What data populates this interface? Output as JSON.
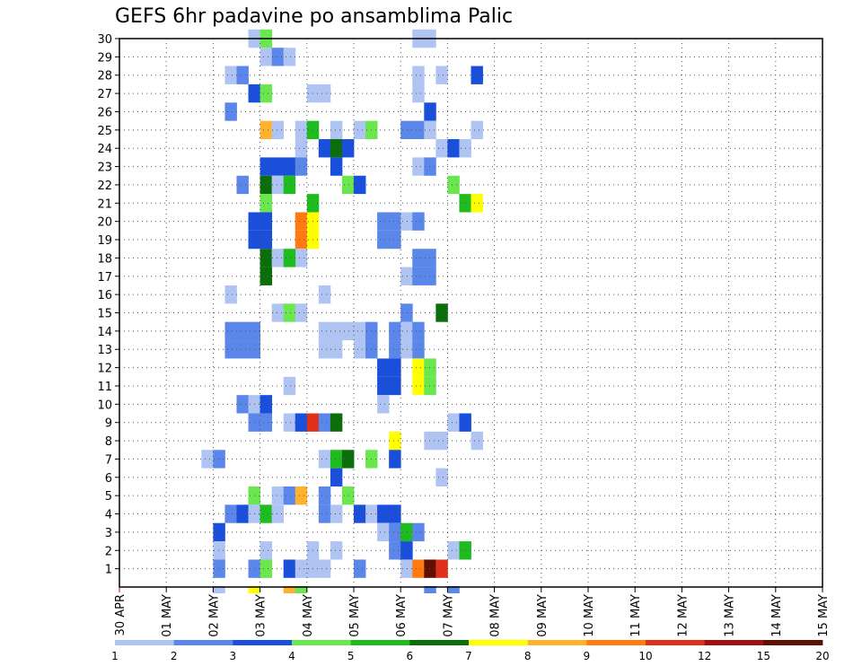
{
  "chart_data": {
    "type": "heatmap",
    "title": "GEFS 6hr padavine po ansamblima Palic",
    "x_tick_labels": [
      "30 APR",
      "01 MAY",
      "02 MAY",
      "03 MAY",
      "04 MAY",
      "05 MAY",
      "06 MAY",
      "07 MAY",
      "08 MAY",
      "09 MAY",
      "10 MAY",
      "11 MAY",
      "12 MAY",
      "13 MAY",
      "14 MAY",
      "15 MAY"
    ],
    "y_tick_labels": [
      "1",
      "2",
      "3",
      "4",
      "5",
      "6",
      "7",
      "8",
      "9",
      "10",
      "11",
      "12",
      "13",
      "14",
      "15",
      "16",
      "17",
      "18",
      "19",
      "20",
      "21",
      "22",
      "23",
      "24",
      "25",
      "26",
      "27",
      "28",
      "29",
      "30"
    ],
    "xlim_days": [
      0,
      15
    ],
    "ylim": [
      0,
      30
    ],
    "steps_per_day": 4,
    "grid": true,
    "legend_position": "bottom",
    "legend": {
      "boundaries": [
        "1",
        "2",
        "3",
        "4",
        "5",
        "6",
        "7",
        "8",
        "9",
        "10",
        "12",
        "15",
        "20",
        ""
      ],
      "colors": [
        "#b0c4f4",
        "#5c87ea",
        "#1a4fdc",
        "#6ae64e",
        "#1fbc1f",
        "#0a6e0a",
        "#ffff00",
        "#ffb22e",
        "#ff7a10",
        "#e0301a",
        "#a01010",
        "#601000"
      ]
    },
    "cells": [
      [
        30,
        11,
        0
      ],
      [
        30,
        12,
        3
      ],
      [
        30,
        25,
        0
      ],
      [
        30,
        26,
        0
      ],
      [
        29,
        12,
        0
      ],
      [
        29,
        13,
        1
      ],
      [
        29,
        14,
        0
      ],
      [
        28,
        9,
        0
      ],
      [
        28,
        10,
        1
      ],
      [
        28,
        25,
        0
      ],
      [
        28,
        27,
        0
      ],
      [
        28,
        30,
        2
      ],
      [
        27,
        11,
        2
      ],
      [
        27,
        12,
        3
      ],
      [
        27,
        16,
        0
      ],
      [
        27,
        17,
        0
      ],
      [
        27,
        25,
        0
      ],
      [
        26,
        9,
        1
      ],
      [
        26,
        26,
        2
      ],
      [
        25,
        12,
        7
      ],
      [
        25,
        13,
        0
      ],
      [
        25,
        15,
        0
      ],
      [
        25,
        16,
        4
      ],
      [
        25,
        18,
        0
      ],
      [
        25,
        20,
        0
      ],
      [
        25,
        21,
        3
      ],
      [
        25,
        24,
        1
      ],
      [
        25,
        25,
        1
      ],
      [
        25,
        26,
        0
      ],
      [
        25,
        30,
        0
      ],
      [
        24,
        15,
        0
      ],
      [
        24,
        17,
        2
      ],
      [
        24,
        18,
        5
      ],
      [
        24,
        19,
        2
      ],
      [
        24,
        27,
        0
      ],
      [
        24,
        28,
        2
      ],
      [
        24,
        29,
        0
      ],
      [
        23,
        12,
        2
      ],
      [
        23,
        13,
        2
      ],
      [
        23,
        14,
        2
      ],
      [
        23,
        15,
        1
      ],
      [
        23,
        18,
        2
      ],
      [
        23,
        25,
        0
      ],
      [
        23,
        26,
        1
      ],
      [
        22,
        10,
        1
      ],
      [
        22,
        12,
        5
      ],
      [
        22,
        13,
        0
      ],
      [
        22,
        14,
        4
      ],
      [
        22,
        19,
        3
      ],
      [
        22,
        20,
        2
      ],
      [
        22,
        28,
        3
      ],
      [
        21,
        12,
        3
      ],
      [
        21,
        16,
        4
      ],
      [
        21,
        29,
        4
      ],
      [
        21,
        30,
        6
      ],
      [
        20,
        11,
        2
      ],
      [
        20,
        12,
        2
      ],
      [
        20,
        15,
        8
      ],
      [
        20,
        16,
        6
      ],
      [
        20,
        22,
        1
      ],
      [
        20,
        23,
        1
      ],
      [
        20,
        24,
        0
      ],
      [
        20,
        25,
        1
      ],
      [
        19,
        11,
        2
      ],
      [
        19,
        12,
        2
      ],
      [
        19,
        15,
        8
      ],
      [
        19,
        16,
        6
      ],
      [
        19,
        22,
        1
      ],
      [
        19,
        23,
        1
      ],
      [
        18,
        15,
        0
      ],
      [
        18,
        12,
        5
      ],
      [
        18,
        13,
        0
      ],
      [
        18,
        14,
        4
      ],
      [
        18,
        25,
        1
      ],
      [
        18,
        26,
        1
      ],
      [
        17,
        12,
        5
      ],
      [
        17,
        24,
        0
      ],
      [
        17,
        25,
        1
      ],
      [
        17,
        26,
        1
      ],
      [
        16,
        9,
        0
      ],
      [
        16,
        17,
        0
      ],
      [
        15,
        13,
        0
      ],
      [
        15,
        14,
        3
      ],
      [
        15,
        15,
        0
      ],
      [
        15,
        24,
        1
      ],
      [
        15,
        27,
        5
      ],
      [
        14,
        9,
        1
      ],
      [
        14,
        10,
        1
      ],
      [
        14,
        11,
        1
      ],
      [
        14,
        17,
        0
      ],
      [
        14,
        18,
        0
      ],
      [
        14,
        19,
        0
      ],
      [
        14,
        20,
        0
      ],
      [
        14,
        21,
        1
      ],
      [
        14,
        23,
        1
      ],
      [
        14,
        24,
        0
      ],
      [
        14,
        25,
        1
      ],
      [
        13,
        9,
        1
      ],
      [
        13,
        10,
        1
      ],
      [
        13,
        11,
        1
      ],
      [
        13,
        17,
        0
      ],
      [
        13,
        18,
        0
      ],
      [
        13,
        20,
        0
      ],
      [
        13,
        21,
        1
      ],
      [
        13,
        23,
        1
      ],
      [
        13,
        24,
        0
      ],
      [
        13,
        25,
        1
      ],
      [
        12,
        22,
        2
      ],
      [
        12,
        23,
        2
      ],
      [
        12,
        25,
        6
      ],
      [
        12,
        26,
        3
      ],
      [
        11,
        14,
        0
      ],
      [
        11,
        22,
        2
      ],
      [
        11,
        23,
        2
      ],
      [
        11,
        25,
        6
      ],
      [
        11,
        26,
        3
      ],
      [
        10,
        10,
        1
      ],
      [
        10,
        11,
        0
      ],
      [
        10,
        12,
        2
      ],
      [
        10,
        22,
        0
      ],
      [
        9,
        11,
        1
      ],
      [
        9,
        12,
        1
      ],
      [
        9,
        14,
        0
      ],
      [
        9,
        15,
        2
      ],
      [
        9,
        16,
        9
      ],
      [
        9,
        17,
        1
      ],
      [
        9,
        18,
        5
      ],
      [
        9,
        28,
        0
      ],
      [
        9,
        29,
        2
      ],
      [
        8,
        23,
        6
      ],
      [
        8,
        26,
        0
      ],
      [
        8,
        27,
        0
      ],
      [
        8,
        30,
        0
      ],
      [
        7,
        7,
        0
      ],
      [
        7,
        8,
        1
      ],
      [
        7,
        17,
        0
      ],
      [
        7,
        18,
        4
      ],
      [
        7,
        19,
        5
      ],
      [
        7,
        21,
        3
      ],
      [
        7,
        23,
        2
      ],
      [
        6,
        18,
        2
      ],
      [
        6,
        27,
        0
      ],
      [
        5,
        11,
        3
      ],
      [
        5,
        13,
        0
      ],
      [
        5,
        14,
        1
      ],
      [
        5,
        15,
        7
      ],
      [
        5,
        17,
        1
      ],
      [
        5,
        19,
        3
      ],
      [
        4,
        9,
        1
      ],
      [
        4,
        10,
        2
      ],
      [
        4,
        11,
        0
      ],
      [
        4,
        12,
        4
      ],
      [
        4,
        13,
        0
      ],
      [
        4,
        17,
        1
      ],
      [
        4,
        18,
        0
      ],
      [
        4,
        20,
        2
      ],
      [
        4,
        21,
        0
      ],
      [
        4,
        22,
        2
      ],
      [
        4,
        23,
        2
      ],
      [
        3,
        8,
        2
      ],
      [
        3,
        22,
        0
      ],
      [
        3,
        23,
        1
      ],
      [
        3,
        24,
        4
      ],
      [
        3,
        25,
        1
      ],
      [
        2,
        8,
        0
      ],
      [
        2,
        12,
        0
      ],
      [
        2,
        16,
        0
      ],
      [
        2,
        18,
        0
      ],
      [
        2,
        23,
        1
      ],
      [
        2,
        24,
        2
      ],
      [
        2,
        28,
        0
      ],
      [
        2,
        29,
        4
      ],
      [
        1,
        8,
        1
      ],
      [
        1,
        11,
        1
      ],
      [
        1,
        12,
        3
      ],
      [
        1,
        14,
        2
      ],
      [
        1,
        15,
        0
      ],
      [
        1,
        16,
        0
      ],
      [
        1,
        17,
        0
      ],
      [
        1,
        20,
        1
      ],
      [
        1,
        24,
        0
      ],
      [
        1,
        25,
        8
      ],
      [
        1,
        26,
        11
      ],
      [
        1,
        27,
        9
      ],
      [
        0,
        8,
        0
      ],
      [
        0,
        11,
        6
      ],
      [
        0,
        14,
        7
      ],
      [
        0,
        15,
        3
      ],
      [
        0,
        26,
        1
      ],
      [
        0,
        28,
        1
      ]
    ]
  }
}
